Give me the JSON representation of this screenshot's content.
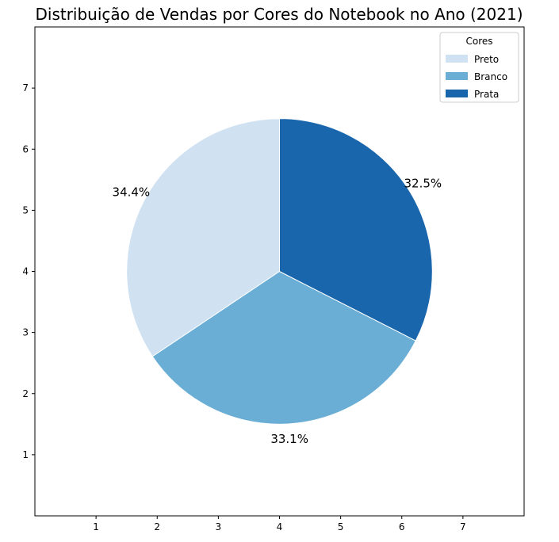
{
  "chart_data": {
    "type": "pie",
    "title": "Distribuição de Vendas por Cores do Notebook no Ano (2021)",
    "categories": [
      "Preto",
      "Branco",
      "Prata"
    ],
    "values": [
      34.4,
      33.1,
      32.5
    ],
    "percent_labels": [
      "34.4%",
      "33.1%",
      "32.5%"
    ],
    "colors": [
      "#d0e1f2",
      "#6aaed6",
      "#1966ad"
    ],
    "start_angle_deg": 90,
    "direction": "counterclockwise",
    "legend": {
      "title": "Cores",
      "position": "upper-right"
    },
    "xlim": [
      0,
      8
    ],
    "ylim": [
      0,
      8
    ],
    "xticks": [
      "1",
      "2",
      "3",
      "4",
      "5",
      "6",
      "7"
    ],
    "yticks": [
      "1",
      "2",
      "3",
      "4",
      "5",
      "6",
      "7"
    ],
    "pie_center": [
      4,
      4
    ],
    "pie_radius": 2.5,
    "grid": false
  }
}
